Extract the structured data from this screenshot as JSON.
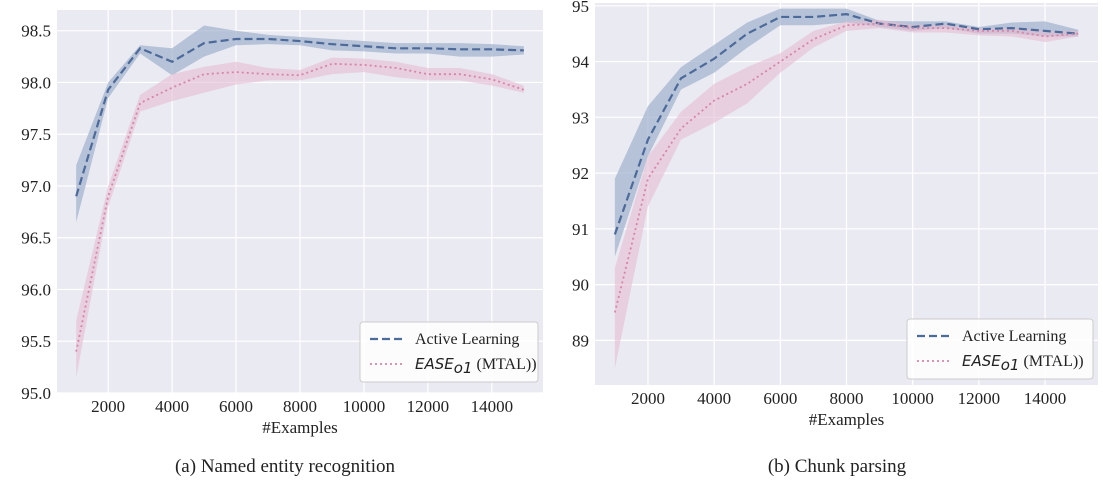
{
  "colors": {
    "active_learning": "#4C6A9A",
    "ease": "#D884A8",
    "active_band": "#9FB0CC",
    "ease_band": "#E4BCD2",
    "plot_bg": "#EAEAF2"
  },
  "legend": {
    "active_label": "Active Learning",
    "ease_label_main": "EASE",
    "ease_label_sub": "o1",
    "ease_label_suffix": " (MTAL))"
  },
  "captions": [
    "(a)  Named entity recognition",
    "(b)  Chunk parsing"
  ],
  "chart_data": [
    {
      "type": "line",
      "xlabel": "#Examples",
      "ylabel": "",
      "x": [
        1000,
        2000,
        3000,
        4000,
        5000,
        6000,
        7000,
        8000,
        9000,
        10000,
        11000,
        12000,
        13000,
        14000,
        15000
      ],
      "xlim": [
        400,
        15600
      ],
      "ylim": [
        95.0,
        98.7
      ],
      "xticks": [
        2000,
        4000,
        6000,
        8000,
        10000,
        12000,
        14000
      ],
      "yticks": [
        95.0,
        95.5,
        96.0,
        96.5,
        97.0,
        97.5,
        98.0,
        98.5
      ],
      "grid": true,
      "legend_position": "lower-right",
      "series": [
        {
          "name": "Active Learning",
          "style": "dashed",
          "values": [
            96.9,
            97.93,
            98.33,
            98.2,
            98.38,
            98.42,
            98.42,
            98.4,
            98.37,
            98.35,
            98.33,
            98.33,
            98.32,
            98.32,
            98.31
          ],
          "lower": [
            96.65,
            97.85,
            98.28,
            98.07,
            98.25,
            98.36,
            98.37,
            98.36,
            98.31,
            98.3,
            98.28,
            98.28,
            98.25,
            98.25,
            98.27
          ],
          "upper": [
            97.2,
            98.0,
            98.36,
            98.33,
            98.55,
            98.5,
            98.46,
            98.44,
            98.42,
            98.4,
            98.38,
            98.38,
            98.38,
            98.37,
            98.35
          ]
        },
        {
          "name": "EASE_o1 (MTAL))",
          "style": "dotted",
          "values": [
            95.4,
            96.9,
            97.8,
            97.95,
            98.08,
            98.1,
            98.08,
            98.07,
            98.18,
            98.17,
            98.14,
            98.08,
            98.08,
            98.03,
            97.93
          ],
          "lower": [
            95.15,
            96.8,
            97.72,
            97.82,
            97.9,
            97.98,
            98.02,
            98.02,
            98.08,
            98.1,
            98.05,
            98.02,
            98.02,
            97.97,
            97.9
          ],
          "upper": [
            95.7,
            97.0,
            97.88,
            98.08,
            98.15,
            98.2,
            98.14,
            98.12,
            98.24,
            98.23,
            98.2,
            98.14,
            98.14,
            98.08,
            97.97
          ]
        }
      ]
    },
    {
      "type": "line",
      "xlabel": "#Examples",
      "ylabel": "",
      "x": [
        1000,
        2000,
        3000,
        4000,
        5000,
        6000,
        7000,
        8000,
        9000,
        10000,
        11000,
        12000,
        13000,
        14000,
        15000
      ],
      "xlim": [
        400,
        15600
      ],
      "ylim": [
        88.2,
        95.05
      ],
      "xticks": [
        2000,
        4000,
        6000,
        8000,
        10000,
        12000,
        14000
      ],
      "yticks": [
        89,
        90,
        91,
        92,
        93,
        94,
        95
      ],
      "grid": true,
      "legend_position": "lower-right",
      "series": [
        {
          "name": "Active Learning",
          "style": "dashed",
          "values": [
            90.9,
            92.6,
            93.7,
            94.05,
            94.5,
            94.8,
            94.8,
            94.85,
            94.68,
            94.62,
            94.68,
            94.58,
            94.6,
            94.55,
            94.5
          ],
          "lower": [
            90.5,
            92.3,
            93.5,
            93.8,
            94.25,
            94.65,
            94.65,
            94.7,
            94.62,
            94.55,
            94.6,
            94.5,
            94.5,
            94.45,
            94.45
          ],
          "upper": [
            91.9,
            93.2,
            93.9,
            94.3,
            94.7,
            94.95,
            94.95,
            94.95,
            94.73,
            94.72,
            94.72,
            94.62,
            94.7,
            94.72,
            94.57
          ]
        },
        {
          "name": "EASE_o1 (MTAL))",
          "style": "dotted",
          "values": [
            89.5,
            91.9,
            92.8,
            93.3,
            93.6,
            94.0,
            94.4,
            94.65,
            94.68,
            94.6,
            94.6,
            94.55,
            94.55,
            94.45,
            94.5
          ],
          "lower": [
            88.5,
            91.4,
            92.6,
            92.9,
            93.25,
            93.8,
            94.25,
            94.55,
            94.6,
            94.52,
            94.52,
            94.47,
            94.45,
            94.35,
            94.45
          ],
          "upper": [
            90.3,
            92.3,
            93.1,
            93.6,
            93.9,
            94.15,
            94.55,
            94.72,
            94.75,
            94.66,
            94.66,
            94.6,
            94.6,
            94.55,
            94.55
          ]
        }
      ]
    }
  ]
}
